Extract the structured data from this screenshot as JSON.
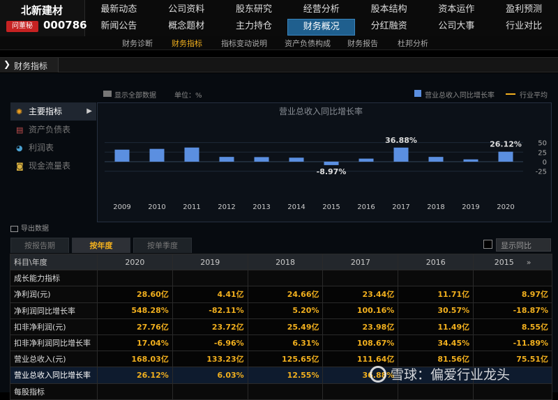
{
  "stock": {
    "name": "北新建材",
    "ask_label": "问董秘",
    "code": "000786"
  },
  "nav": {
    "row1": [
      "最新动态",
      "公司资料",
      "股东研究",
      "经营分析",
      "股本结构",
      "资本运作",
      "盈利预测"
    ],
    "row2": [
      "新闻公告",
      "概念题材",
      "主力持仓",
      "财务概况",
      "分红融资",
      "公司大事",
      "行业对比"
    ],
    "active": "财务概况"
  },
  "subnav": {
    "items": [
      "财务诊断",
      "财务指标",
      "指标变动说明",
      "资产负债构成",
      "财务报告",
      "杜邦分析"
    ],
    "active": "财务指标"
  },
  "section": {
    "title": "财务指标"
  },
  "left_menu": [
    {
      "label": "主要指标",
      "icon": "sun-icon",
      "active": true
    },
    {
      "label": "资产负债表",
      "icon": "document-icon",
      "active": false
    },
    {
      "label": "利润表",
      "icon": "pie-icon",
      "active": false
    },
    {
      "label": "现金流量表",
      "icon": "coins-icon",
      "active": false
    }
  ],
  "chart_toolbar": {
    "show_all": "显示全部数据",
    "unit": "单位：%",
    "legend_series": "营业总收入同比增长率",
    "legend_avg": "行业平均"
  },
  "chart_data": {
    "type": "bar",
    "title": "营业总收入同比增长率",
    "categories": [
      "2009",
      "2010",
      "2011",
      "2012",
      "2013",
      "2014",
      "2015",
      "2016",
      "2017",
      "2018",
      "2019",
      "2020"
    ],
    "series": [
      {
        "name": "营业总收入同比增长率",
        "values": [
          31.5,
          33.5,
          37.0,
          12.5,
          12.0,
          10.5,
          -8.97,
          8.0,
          36.88,
          12.5,
          6.03,
          26.12
        ]
      }
    ],
    "data_labels": {
      "6": "-8.97%",
      "8": "36.88%",
      "11": "26.12%"
    },
    "yticks": [
      50,
      25,
      0,
      -25
    ],
    "ylim": [
      -50,
      70
    ],
    "bar_color": "#5b8fe0",
    "legend": "top-right"
  },
  "export": {
    "label": "导出数据"
  },
  "tabs": [
    {
      "label": "按报告期",
      "active": false
    },
    {
      "label": "按年度",
      "active": true
    },
    {
      "label": "按单季度",
      "active": false
    }
  ],
  "yoy_toggle": {
    "label": "显示同比"
  },
  "table": {
    "header_label": "科目\\年度",
    "years": [
      "2020",
      "2019",
      "2018",
      "2017",
      "2016",
      "2015"
    ],
    "scroll_glyph": "»",
    "rows": [
      {
        "group": true,
        "label": "成长能力指标"
      },
      {
        "label": "净利润(元)",
        "values": [
          "28.60亿",
          "4.41亿",
          "24.66亿",
          "23.44亿",
          "11.71亿",
          "8.97亿"
        ]
      },
      {
        "label": "净利润同比增长率",
        "values": [
          "548.28%",
          "-82.11%",
          "5.20%",
          "100.16%",
          "30.57%",
          "-18.87%"
        ]
      },
      {
        "label": "扣非净利润(元)",
        "values": [
          "27.76亿",
          "23.72亿",
          "25.49亿",
          "23.98亿",
          "11.49亿",
          "8.55亿"
        ]
      },
      {
        "label": "扣非净利润同比增长率",
        "values": [
          "17.04%",
          "-6.96%",
          "6.31%",
          "108.67%",
          "34.45%",
          "-11.89%"
        ]
      },
      {
        "label": "营业总收入(元)",
        "values": [
          "168.03亿",
          "133.23亿",
          "125.65亿",
          "111.64亿",
          "81.56亿",
          "75.51亿"
        ]
      },
      {
        "label": "营业总收入同比增长率",
        "values": [
          "26.12%",
          "6.03%",
          "12.55%",
          "36.88%",
          "",
          ""
        ],
        "highlight": true
      },
      {
        "group": true,
        "label": "每股指标"
      }
    ]
  },
  "watermark": {
    "text": "雪球：偏爱行业龙头"
  }
}
